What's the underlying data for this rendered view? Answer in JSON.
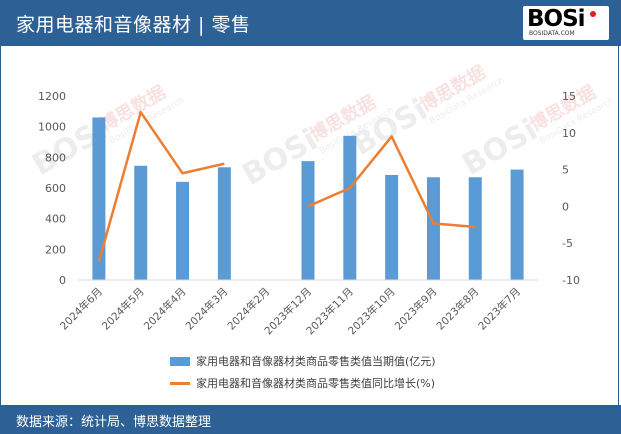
{
  "header": {
    "title": "家用电器和音像器材 | 零售",
    "logo_text": "BOSi",
    "logo_sub": "BOSIDATA.COM"
  },
  "footer": {
    "source": "数据来源：统计局、博思数据整理"
  },
  "colors": {
    "header_bg": "#2d6195",
    "bar": "#5b9bd5",
    "line": "#ed7d31"
  },
  "chart_data": {
    "type": "bar",
    "categories": [
      "2024年6月",
      "2024年5月",
      "2024年4月",
      "2024年3月",
      "2024年2月",
      "2023年12月",
      "2023年11月",
      "2023年10月",
      "2023年9月",
      "2023年8月",
      "2023年7月"
    ],
    "series": [
      {
        "name": "家用电器和音像器材类商品零售类值当期值(亿元)",
        "type": "bar",
        "axis": "left",
        "values": [
          1060,
          745,
          640,
          735,
          null,
          775,
          940,
          685,
          670,
          670,
          720
        ]
      },
      {
        "name": "家用电器和音像器材类商品零售类值同比增长(%)",
        "type": "line",
        "axis": "right",
        "values": [
          -7.5,
          12.8,
          4.5,
          5.8,
          null,
          0.0,
          2.5,
          9.5,
          -2.3,
          -2.8,
          null
        ]
      }
    ],
    "y_left": {
      "min": 0,
      "max": 1200,
      "ticks": [
        0,
        200,
        400,
        600,
        800,
        1000,
        1200
      ]
    },
    "y_right": {
      "min": -10,
      "max": 15,
      "ticks": [
        -10,
        -5,
        0,
        5,
        10,
        15
      ]
    },
    "grid": false,
    "legend_position": "bottom"
  },
  "watermark": {
    "text": "BOSi",
    "cn_text": "博思数据",
    "en_text": "BosiData Research"
  }
}
